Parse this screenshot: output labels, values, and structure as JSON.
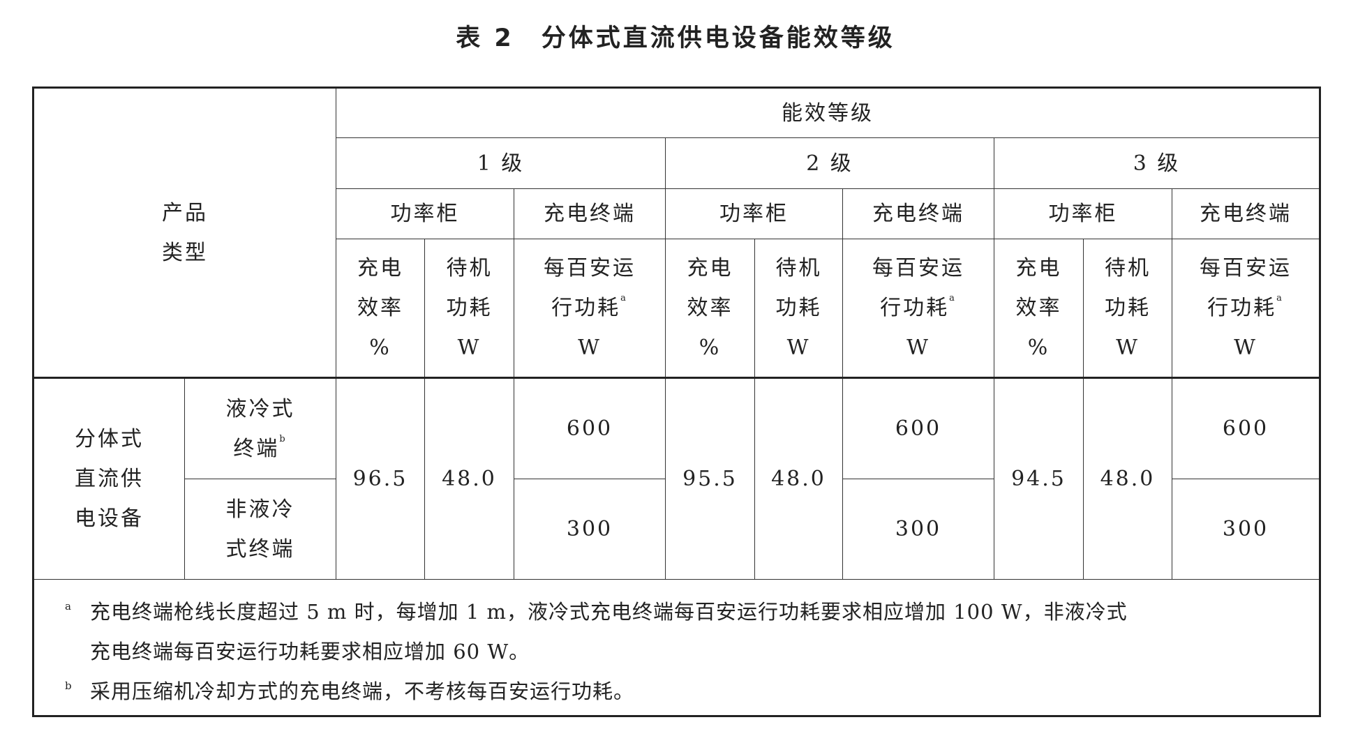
{
  "title": "表 2　分体式直流供电设备能效等级",
  "header": {
    "product_type": [
      "产品",
      "类型"
    ],
    "efficiency_grade": "能效等级",
    "grades": [
      "1 级",
      "2 级",
      "3 级"
    ],
    "power_cabinet": "功率柜",
    "charging_terminal": "充电终端",
    "charging_efficiency": [
      "充电",
      "效率",
      "%"
    ],
    "standby_power": [
      "待机",
      "功耗",
      "W"
    ],
    "per_100a_power": [
      "每百安运",
      "行功耗",
      "a",
      "W"
    ]
  },
  "body": {
    "category": [
      "分体式",
      "直流供",
      "电设备"
    ],
    "liquid_cooled": [
      "液冷式",
      "终端",
      "b"
    ],
    "non_liquid_cooled": [
      "非液冷",
      "式终端"
    ],
    "grades": [
      {
        "efficiency": "96.5",
        "standby": "48.0",
        "liquid": "600",
        "non_liquid": "300"
      },
      {
        "efficiency": "95.5",
        "standby": "48.0",
        "liquid": "600",
        "non_liquid": "300"
      },
      {
        "efficiency": "94.5",
        "standby": "48.0",
        "liquid": "600",
        "non_liquid": "300"
      }
    ]
  },
  "footnotes": [
    {
      "mark": "a",
      "lines": [
        "充电终端枪线长度超过 5 m 时，每增加 1 m，液冷式充电终端每百安运行功耗要求相应增加 100 W，非液冷式",
        "充电终端每百安运行功耗要求相应增加 60 W。"
      ]
    },
    {
      "mark": "b",
      "lines": [
        "采用压缩机冷却方式的充电终端，不考核每百安运行功耗。"
      ]
    }
  ]
}
